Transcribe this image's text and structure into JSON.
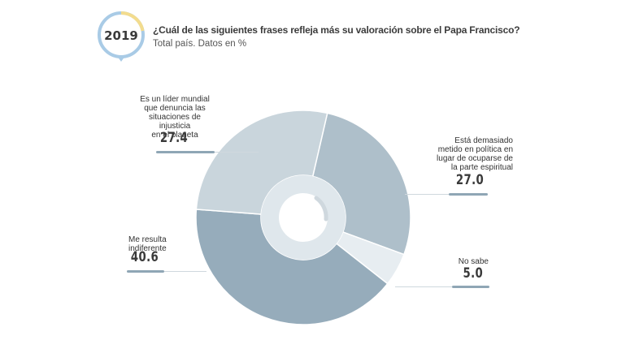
{
  "header": {
    "year": "2019",
    "title": "¿Cuál de las siguientes frases refleja más su valoración sobre el Papa Francisco?",
    "subtitle": "Total país. Datos en %"
  },
  "colors": {
    "badge_ring_blue": "#a9cbe6",
    "badge_ring_yellow": "#f3dc8e",
    "slice_lider": "#c9d5dc",
    "slice_metido": "#aebfca",
    "slice_nosabe": "#e7edf1",
    "slice_indiferente": "#96acbb",
    "center_ring": "#dfe7ec",
    "label_underline": "#8fa6b5"
  },
  "chart_data": {
    "type": "pie",
    "style": "donut",
    "categories": [
      "Está demasiado metido en política en lugar de ocuparse de la parte espiritual",
      "No sabe",
      "Me resulta indiferente",
      "Es un líder mundial que denuncia las situaciones de injusticia en el planeta"
    ],
    "values": [
      27.0,
      5.0,
      40.6,
      27.4
    ],
    "value_labels": [
      "27.0",
      "5.0",
      "40.6",
      "27.4"
    ],
    "label_lines": [
      [
        "Está demasiado",
        "metido en política en",
        "lugar de ocuparse de",
        "la parte espiritual"
      ],
      [
        "No sabe"
      ],
      [
        "Me resulta",
        "indiferente"
      ],
      [
        "Es un líder mundial",
        "que denuncia las",
        "situaciones de injusticia",
        "en el planeta"
      ]
    ],
    "title": "¿Cuál de las siguientes frases refleja más su valoración sobre el Papa Francisco?",
    "subtitle": "Total país. Datos en %"
  }
}
